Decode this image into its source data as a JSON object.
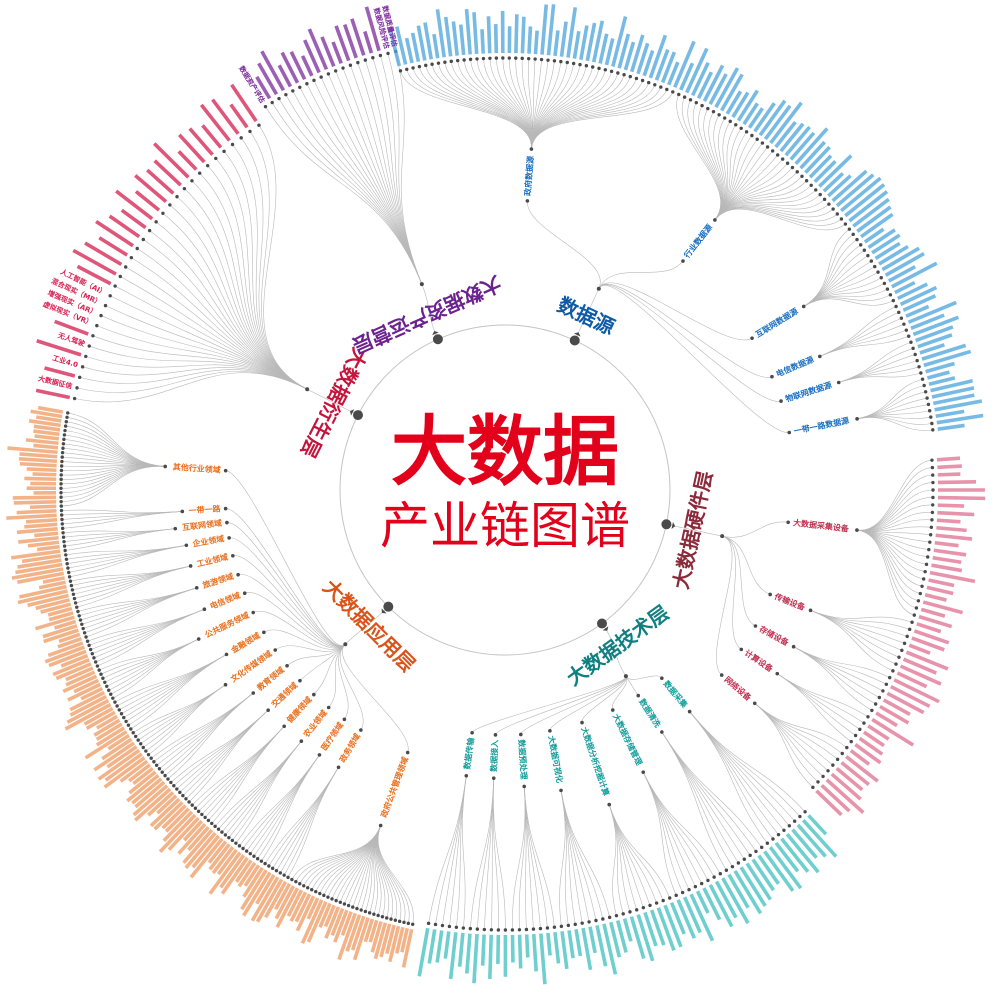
{
  "title": {
    "main": "大数据",
    "sub": "产业链图谱",
    "color": "#e2001a"
  },
  "colors": {
    "link": "#b8b8b8",
    "node": "#4a4a4a",
    "ring": "#c4c4c4"
  },
  "layers": [
    {
      "name": "数据源",
      "label_color": "#0d5ba8",
      "branch_color": "#1a6fc0",
      "leaf_color": "#4aa3dc",
      "branches": [
        {
          "name": "政府数据源",
          "leaves": [],
          "more": 44
        },
        {
          "name": "行业数据源",
          "leaves": [],
          "more": 34
        },
        {
          "name": "互联网数据源",
          "leaves": [],
          "more": 14
        },
        {
          "name": "电信数据源",
          "leaves": [],
          "more": 6
        },
        {
          "name": "物联网数据源",
          "leaves": [],
          "more": 6
        },
        {
          "name": "一带一路数据源",
          "leaves": [],
          "more": 9
        }
      ]
    },
    {
      "name": "大数据硬件层",
      "label_color": "#8b2a3a",
      "branch_color": "#c03050",
      "leaf_color": "#e07090",
      "branches": [
        {
          "name": "大数据采集设备",
          "leaves": [],
          "more": 22
        },
        {
          "name": "传输设备",
          "leaves": [],
          "more": 8
        },
        {
          "name": "存储设备",
          "leaves": [],
          "more": 6
        },
        {
          "name": "计算设备",
          "leaves": [],
          "more": 5
        },
        {
          "name": "网络设备",
          "leaves": [],
          "more": 8
        }
      ]
    },
    {
      "name": "大数据技术层",
      "label_color": "#0f7f80",
      "branch_color": "#149c9c",
      "leaf_color": "#3fbfc0",
      "branches": [
        {
          "name": "数据采集",
          "leaves": [],
          "more": 8
        },
        {
          "name": "数据清洗",
          "leaves": [],
          "more": 7
        },
        {
          "name": "大数据存储管理",
          "leaves": [],
          "more": 8
        },
        {
          "name": "大数据分析挖掘计算",
          "leaves": [],
          "more": 9
        },
        {
          "name": "大数据可视化",
          "leaves": [],
          "more": 8
        },
        {
          "name": "数据预处理",
          "leaves": [],
          "more": 7
        },
        {
          "name": "数据接入",
          "leaves": [],
          "more": 6
        },
        {
          "name": "数据传输",
          "leaves": [],
          "more": 6
        }
      ]
    },
    {
      "name": "大数据应用层",
      "label_color": "#d9541a",
      "branch_color": "#e8701e",
      "leaf_color": "#f09a62",
      "branches": [
        {
          "name": "政府公共管理领域",
          "leaves": [],
          "more": 30
        },
        {
          "name": "政务领域",
          "leaves": [],
          "more": 7
        },
        {
          "name": "医疗领域",
          "leaves": [],
          "more": 7
        },
        {
          "name": "农业领域",
          "leaves": [],
          "more": 7
        },
        {
          "name": "健康领域",
          "leaves": [],
          "more": 7
        },
        {
          "name": "交通领域",
          "leaves": [],
          "more": 7
        },
        {
          "name": "教育领域",
          "leaves": [],
          "more": 7
        },
        {
          "name": "文化传媒领域",
          "leaves": [],
          "more": 7
        },
        {
          "name": "金融领域",
          "leaves": [],
          "more": 8
        },
        {
          "name": "公共服务领域",
          "leaves": [],
          "more": 8
        },
        {
          "name": "电信领域",
          "leaves": [],
          "more": 7
        },
        {
          "name": "旅游领域",
          "leaves": [],
          "more": 7
        },
        {
          "name": "工业领域",
          "leaves": [],
          "more": 7
        },
        {
          "name": "企业领域",
          "leaves": [],
          "more": 6
        },
        {
          "name": "互联网领域",
          "leaves": [],
          "more": 5
        },
        {
          "name": "一带一路",
          "leaves": [],
          "more": 5
        },
        {
          "name": "其他行业领域",
          "leaves": [],
          "more": 22
        }
      ]
    },
    {
      "name": "大数据衍生层",
      "label_color": "#c4143c",
      "branch_color": "#c4143c",
      "leaf_color": "#d42050",
      "leaves": [
        "",
        "大数据征信",
        "",
        "工业4.0",
        "",
        "无人驾驶",
        "",
        "虚拟现实（VR）",
        "增强现实（AR）",
        "混合现实（MR）",
        "人工智能（AI）"
      ],
      "more": 21
    },
    {
      "name": "大数据资产运营层",
      "label_color": "#6b2290",
      "branch_color": "#6b2290",
      "leaf_color": "#7b2a9a",
      "leaves": [
        "数据资产评估"
      ],
      "more": 16,
      "tail_leaves": [
        "数据风险评估",
        "数据质量评估"
      ]
    }
  ]
}
